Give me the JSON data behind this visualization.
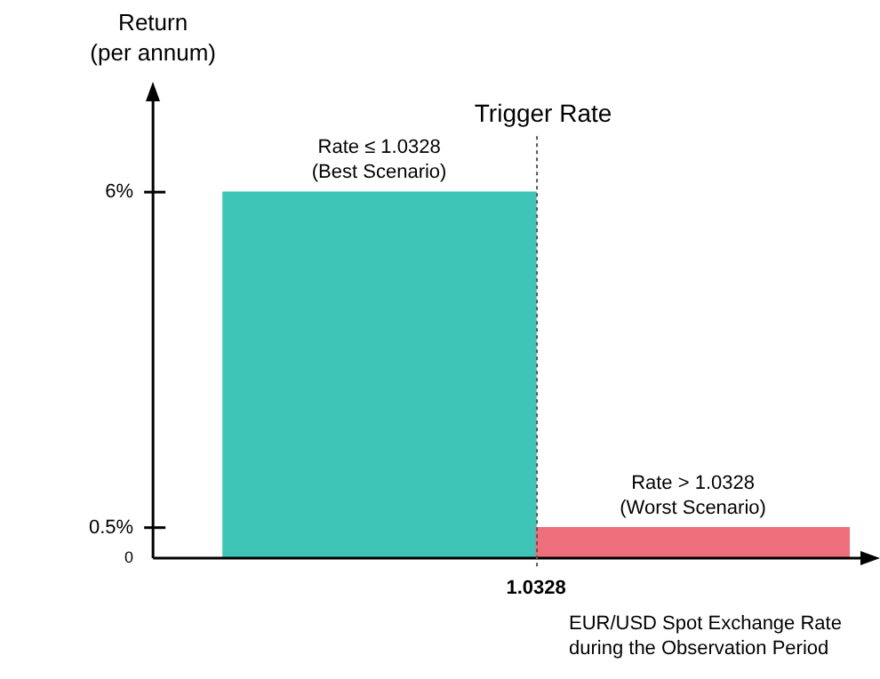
{
  "chart_data": {
    "type": "bar",
    "ylabel": "Return\n(per annum)",
    "xlabel": "EUR/USD Spot Exchange Rate\nduring the Observation Period",
    "categories": [
      null,
      null
    ],
    "values": [
      6,
      0.5
    ],
    "colors": [
      "#3fc4b8",
      "#ee6f7c"
    ],
    "ylim": [
      0,
      7.5
    ],
    "yticks": [
      {
        "value": 0,
        "label": "0"
      },
      {
        "value": 0.5,
        "label": "0.5%"
      },
      {
        "value": 6,
        "label": "6%"
      }
    ],
    "grid": false,
    "legend": false,
    "annotations": [
      {
        "text": "Rate ≤ 1.0328\n(Best Scenario)",
        "y": 6
      },
      {
        "text": "Rate > 1.0328\n(Worst Scenario)",
        "y": 0.5
      },
      "Trigger Rate",
      "1.0328"
    ]
  }
}
